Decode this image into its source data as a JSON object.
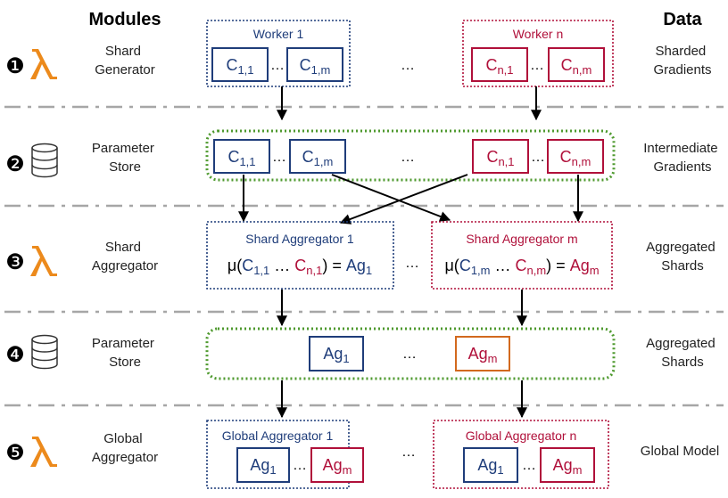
{
  "headers": {
    "modules": "Modules",
    "data": "Data"
  },
  "colors": {
    "blue": "#1f3d7a",
    "red": "#b0103a",
    "green": "#4f9a2f",
    "orange": "#d2691e",
    "lambda": "#ec8a1c",
    "separator": "#a6a6a6"
  },
  "ellipsis": "…",
  "rows": [
    {
      "number": "❶",
      "icon": "lambda-icon",
      "module": [
        "Shard",
        "Generator"
      ],
      "data": [
        "Sharded",
        "Gradients"
      ],
      "workers": {
        "left": "Worker 1",
        "right": "Worker n"
      },
      "cells": {
        "a": {
          "base": "C",
          "sub": "1,1"
        },
        "b": {
          "base": "C",
          "sub": "1,m"
        },
        "c": {
          "base": "C",
          "sub": "n,1"
        },
        "d": {
          "base": "C",
          "sub": "n,m"
        }
      }
    },
    {
      "number": "❷",
      "icon": "database-icon",
      "module": [
        "Parameter",
        "Store"
      ],
      "data": [
        "Intermediate",
        "Gradients"
      ],
      "cells": {
        "a": {
          "base": "C",
          "sub": "1,1"
        },
        "b": {
          "base": "C",
          "sub": "1,m"
        },
        "c": {
          "base": "C",
          "sub": "n,1"
        },
        "d": {
          "base": "C",
          "sub": "n,m"
        }
      }
    },
    {
      "number": "❸",
      "icon": "lambda-icon",
      "module": [
        "Shard",
        "Aggregator"
      ],
      "data": [
        "Aggregated",
        "Shards"
      ],
      "aggregators": {
        "left": "Shard Aggregator 1",
        "right": "Shard Aggregator m"
      },
      "formulas": {
        "left": {
          "mu": "μ(",
          "c1": "C",
          "c1sub": "1,1",
          "dots": " … ",
          "c2": "C",
          "c2sub": "n,1",
          "eq": ") = ",
          "ag": "Ag",
          "agsub": "1"
        },
        "right": {
          "mu": "μ(",
          "c1": "C",
          "c1sub": "1,m",
          "dots": " … ",
          "c2": "C",
          "c2sub": "n,m",
          "eq": ") = ",
          "ag": "Ag",
          "agsub": "m"
        }
      }
    },
    {
      "number": "❹",
      "icon": "database-icon",
      "module": [
        "Parameter",
        "Store"
      ],
      "data": [
        "Aggregated",
        "Shards"
      ],
      "cells": {
        "a": {
          "base": "Ag",
          "sub": "1"
        },
        "b": {
          "base": "Ag",
          "sub": "m"
        }
      }
    },
    {
      "number": "❺",
      "icon": "lambda-icon",
      "module": [
        "Global",
        "Aggregator"
      ],
      "data": [
        "Global Model"
      ],
      "aggregators": {
        "left": "Global Aggregator 1",
        "right": "Global Aggregator n"
      },
      "cells": {
        "a": {
          "base": "Ag",
          "sub": "1"
        },
        "b": {
          "base": "Ag",
          "sub": "m"
        },
        "c": {
          "base": "Ag",
          "sub": "1"
        },
        "d": {
          "base": "Ag",
          "sub": "m"
        }
      }
    }
  ]
}
